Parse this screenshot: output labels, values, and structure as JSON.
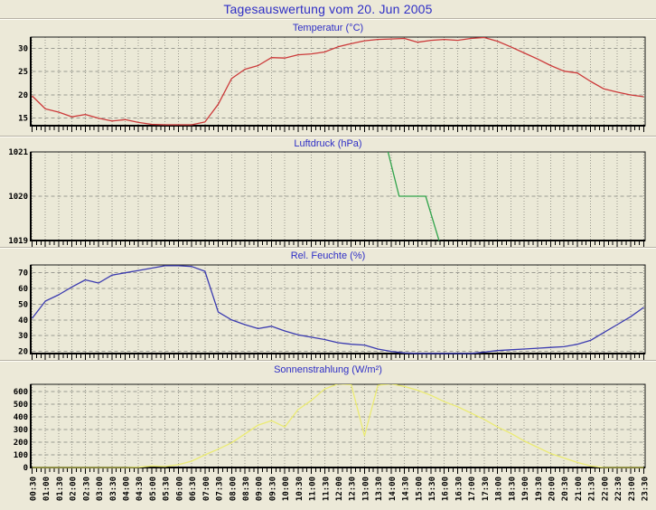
{
  "page": {
    "title": "Tagesauswertung vom 20. Jun 2005",
    "background_color": "#ece9d8",
    "accent_text_color": "#2e2ec6"
  },
  "time_axis": {
    "labels": [
      "00:30",
      "01:00",
      "01:30",
      "02:00",
      "02:30",
      "03:00",
      "03:30",
      "04:00",
      "04:30",
      "05:00",
      "05:30",
      "06:00",
      "06:30",
      "07:00",
      "07:30",
      "08:00",
      "08:30",
      "09:00",
      "09:30",
      "10:00",
      "10:30",
      "11:00",
      "11:30",
      "12:00",
      "12:30",
      "13:00",
      "13:30",
      "14:00",
      "14:30",
      "15:00",
      "15:30",
      "16:00",
      "16:30",
      "17:00",
      "17:30",
      "18:00",
      "18:30",
      "19:00",
      "19:30",
      "20:00",
      "20:30",
      "21:00",
      "21:30",
      "22:00",
      "22:30",
      "23:00",
      "23:30"
    ]
  },
  "chart_data": [
    {
      "type": "line",
      "title": "Temperatur (°C)",
      "color": "#cc3a3a",
      "ylim": [
        13.4,
        32.4
      ],
      "yticks": [
        15,
        20,
        25,
        30
      ],
      "grid": true,
      "values": [
        19.8,
        17.0,
        16.3,
        15.3,
        15.8,
        15.0,
        14.4,
        14.7,
        14.1,
        13.7,
        13.6,
        13.6,
        13.6,
        14.2,
        18.0,
        23.5,
        25.5,
        26.3,
        28.0,
        27.9,
        28.6,
        28.8,
        29.2,
        30.3,
        31.0,
        31.6,
        31.9,
        32.0,
        32.1,
        31.3,
        31.7,
        31.9,
        31.7,
        32.1,
        32.3,
        31.5,
        30.3,
        29.0,
        27.7,
        26.3,
        25.1,
        24.7,
        22.9,
        21.3,
        20.6,
        20.0,
        19.6
      ]
    },
    {
      "type": "line",
      "title": "Luftdruck (hPa)",
      "color": "#2fa34a",
      "ylim": [
        1019,
        1021
      ],
      "yticks": [
        1019,
        1020,
        1021
      ],
      "grid": true,
      "clipped": true,
      "points": [
        {
          "time": "13:48",
          "value": 1021.2
        },
        {
          "time": "14:18",
          "value": 1020
        },
        {
          "time": "15:18",
          "value": 1020
        },
        {
          "time": "15:48",
          "value": 1019
        }
      ]
    },
    {
      "type": "line",
      "title": "Rel. Feuchte (%)",
      "color": "#3b3bb0",
      "ylim": [
        18.6,
        75
      ],
      "yticks": [
        20,
        30,
        40,
        50,
        60,
        70
      ],
      "grid": true,
      "values": [
        41,
        52,
        56,
        61,
        65.5,
        63.5,
        68.5,
        70,
        71.5,
        73,
        74.5,
        74.5,
        74,
        71,
        45,
        40,
        37,
        34.5,
        36,
        33,
        30.5,
        29,
        27.5,
        25.5,
        24.5,
        24,
        21.5,
        20,
        19,
        18.7,
        18.7,
        18.7,
        18.7,
        18.7,
        19.5,
        20.5,
        21,
        21.5,
        22,
        22.5,
        23,
        24.5,
        27,
        32,
        37,
        42,
        48
      ]
    },
    {
      "type": "line",
      "title": "Sonnenstrahlung (W/m²)",
      "color": "#ebeb72",
      "ylim": [
        0,
        657
      ],
      "yticks": [
        0,
        100,
        200,
        300,
        400,
        500,
        600
      ],
      "grid": true,
      "values": [
        0,
        0,
        0,
        0,
        0,
        0,
        0,
        0,
        2,
        12,
        8,
        22,
        50,
        100,
        145,
        195,
        265,
        335,
        370,
        320,
        457,
        530,
        620,
        660,
        655,
        250,
        650,
        660,
        640,
        610,
        570,
        520,
        480,
        430,
        380,
        320,
        270,
        210,
        160,
        110,
        75,
        40,
        12,
        0,
        0,
        0,
        0
      ]
    }
  ]
}
